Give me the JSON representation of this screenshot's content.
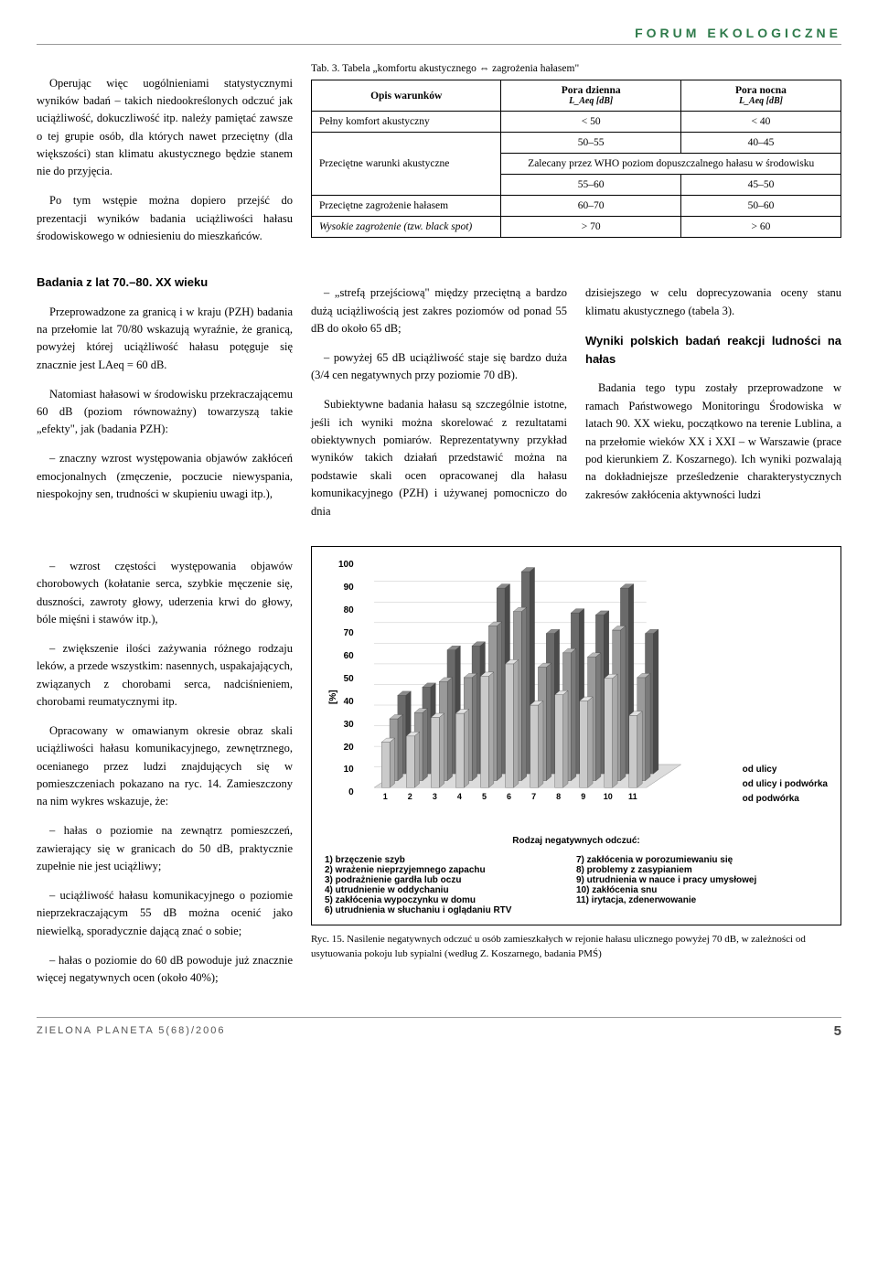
{
  "section_header": "FORUM EKOLOGICZNE",
  "top_left_text": {
    "p1": "Operując więc uogólnieniami statystycznymi wyników badań – takich niedookreślonych odczuć jak uciążliwość, dokuczliwość itp. należy pamiętać zawsze o tej grupie osób, dla których nawet przeciętny (dla większości) stan klimatu akustycznego będzie stanem nie do przyjęcia.",
    "p2": "Po tym wstępie można dopiero przejść do prezentacji wyników badania uciążliwości hałasu środowiskowego w odniesieniu do mieszkańców."
  },
  "table3": {
    "caption_main": "Tab. 3. Tabela „komfortu akustycznego ⇔ zagrożenia hałasem\"",
    "header": {
      "c1": "Opis warunków",
      "c2_top": "Pora dzienna",
      "c2_sub": "L_Aeq [dB]",
      "c3_top": "Pora nocna",
      "c3_sub": "L_Aeq [dB]"
    },
    "rows": {
      "r1": {
        "c1": "Pełny komfort akustyczny",
        "c2": "< 50",
        "c3": "< 40"
      },
      "r2": {
        "c1": "Przeciętne warunki akustyczne",
        "a2": "50–55",
        "a3": "40–45",
        "b": "Zalecany przez WHO poziom dopuszczalnego hałasu w środowisku",
        "c2": "55–60",
        "c3": "45–50"
      },
      "r3": {
        "c1": "Przeciętne zagrożenie hałasem",
        "c2": "60–70",
        "c3": "50–60"
      },
      "r4": {
        "c1": "Wysokie zagrożenie (tzw. black spot)",
        "c2": "> 70",
        "c3": "> 60"
      }
    }
  },
  "mid_columns": {
    "col1": {
      "subhead": "Badania z lat 70.–80. XX wieku",
      "p1": "Przeprowadzone za granicą i w kraju (PZH) badania na przełomie lat 70/80 wskazują wyraźnie, że granicą, powyżej której uciążliwość hałasu potęguje się znacznie jest LAeq = 60 dB.",
      "p2": "Natomiast hałasowi w środowisku przekraczającemu 60 dB (poziom równoważny) towarzyszą takie „efekty\", jak (badania PZH):",
      "p3": "– znaczny wzrost występowania objawów zakłóceń emocjonalnych (zmęczenie, poczucie niewyspania, niespokojny sen, trudności w skupieniu uwagi itp.),"
    },
    "col2": {
      "p1": "– „strefą przejściową\" między przeciętną a bardzo dużą uciążliwością jest zakres poziomów od ponad 55 dB do około 65 dB;",
      "p2": "– powyżej 65 dB uciążliwość staje się bardzo duża (3/4 cen negatywnych przy poziomie 70 dB).",
      "p3": "Subiektywne badania hałasu są szczególnie istotne, jeśli ich wyniki można skorelować z rezultatami obiektywnych pomiarów. Reprezentatywny przykład wyników takich działań przedstawić można na podstawie skali ocen opracowanej dla hałasu komunikacyjnego (PZH) i używanej pomocniczo do dnia"
    },
    "col3": {
      "p1": "dzisiejszego w celu doprecyzowania oceny stanu klimatu akustycznego (tabela 3).",
      "subhead": "Wyniki polskich badań reakcji ludności na hałas",
      "p2": "Badania tego typu zostały przeprowadzone w ramach Państwowego Monitoringu Środowiska w latach 90. XX wieku, początkowo na terenie Lublina, a na przełomie wieków XX i XXI – w Warszawie (prace pod kierunkiem Z. Koszarnego). Ich wyniki pozwalają na dokładniejsze prześledzenie charakterystycznych zakresów zakłócenia aktywności ludzi"
    }
  },
  "lower_left": {
    "p1": "– wzrost częstości występowania objawów chorobowych (kołatanie serca, szybkie męczenie się, duszności, zawroty głowy, uderzenia krwi do głowy, bóle mięśni i stawów itp.),",
    "p2": "– zwiększenie ilości zażywania różnego rodzaju leków, a przede wszystkim: nasennych, uspakajających, związanych z chorobami serca, nadciśnieniem, chorobami reumatycznymi itp.",
    "p3": "Opracowany w omawianym okresie obraz skali uciążliwości hałasu komunikacyjnego, zewnętrznego, ocenianego przez ludzi znajdujących się w pomieszczeniach pokazano na ryc. 14. Zamieszczony na nim wykres wskazuje, że:",
    "p4": "– hałas o poziomie na zewnątrz pomieszczeń, zawierający się w granicach do 50 dB, praktycznie zupełnie nie jest uciążliwy;",
    "p5": "– uciążliwość hałasu komunikacyjnego o poziomie nieprzekraczającym 55 dB można ocenić jako niewielką, sporadycznie dającą znać o sobie;",
    "p6": "– hałas o poziomie do 60 dB powoduje już znacznie więcej negatywnych ocen (około 40%);"
  },
  "chart": {
    "type": "3d-grouped-bar",
    "y_label": "[%]",
    "x_label": "Rodzaj negatywnych odczuć:",
    "y_ticks": [
      "100",
      "90",
      "80",
      "70",
      "60",
      "50",
      "40",
      "30",
      "20",
      "10",
      "0"
    ],
    "x_categories": [
      "1",
      "2",
      "3",
      "4",
      "5",
      "6",
      "7",
      "8",
      "9",
      "10",
      "11"
    ],
    "series": [
      {
        "name": "od ulicy",
        "color_top": "#8a8a8a",
        "color_front": "#6a6a6a",
        "color_side": "#4a4a4a"
      },
      {
        "name": "od ulicy i podwórka",
        "color_top": "#b8b8b8",
        "color_front": "#9a9a9a",
        "color_side": "#7a7a7a"
      },
      {
        "name": "od podwórka",
        "color_top": "#e0e0e0",
        "color_front": "#cacaca",
        "color_side": "#aaaaaa"
      }
    ],
    "data": {
      "od_ulicy": [
        38,
        42,
        60,
        62,
        90,
        98,
        68,
        78,
        77,
        90,
        68
      ],
      "od_ulicy_podworka": [
        30,
        33,
        48,
        50,
        75,
        82,
        55,
        62,
        60,
        73,
        50
      ],
      "od_podworka": [
        22,
        25,
        34,
        36,
        54,
        60,
        40,
        45,
        42,
        53,
        35
      ]
    },
    "grid_color": "#bfbfbf",
    "floor_color": "#dcdcdc",
    "background": "#ffffff",
    "legend_labels": {
      "s1": "od ulicy",
      "s2": "od ulicy i podwórka",
      "s3": "od podwórka"
    },
    "items_left": [
      "1) brzęczenie szyb",
      "2) wrażenie nieprzyjemnego zapachu",
      "3) podrażnienie gardła lub oczu",
      "4) utrudnienie w oddychaniu",
      "5) zakłócenia wypoczynku w domu",
      "6) utrudnienia w słuchaniu i oglądaniu RTV"
    ],
    "items_right": [
      "7) zakłócenia w porozumiewaniu się",
      "8) problemy z zasypianiem",
      "9) utrudnienia w nauce i pracy umysłowej",
      "10) zakłócenia snu",
      "11) irytacja, zdenerwowanie"
    ]
  },
  "fig_caption": "Ryc. 15. Nasilenie negatywnych odczuć u osób zamieszkałych w rejonie hałasu ulicznego powyżej 70 dB, w zależności od usytuowania pokoju lub sypialni (według Z. Koszarnego, badania PMŚ)",
  "footer": {
    "left": "ZIELONA PLANETA 5(68)/2006",
    "page": "5"
  }
}
